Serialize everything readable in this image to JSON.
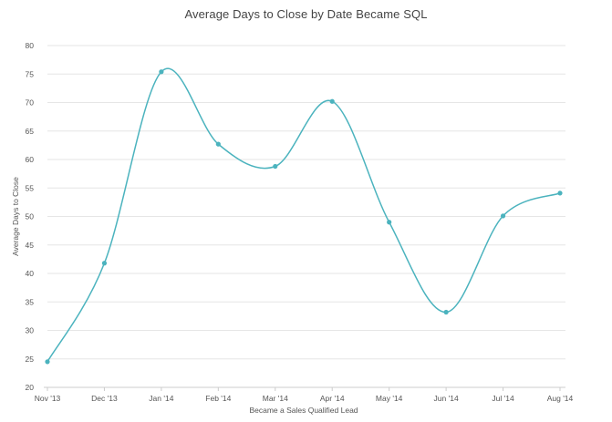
{
  "chart_data": {
    "type": "line",
    "title": "Average Days to Close by Date Became SQL",
    "xlabel": "Became a Sales Qualified Lead",
    "ylabel": "Average Days to Close",
    "categories": [
      "Nov '13",
      "Dec '13",
      "Jan '14",
      "Feb '14",
      "Mar '14",
      "Apr '14",
      "May '14",
      "Jun '14",
      "Jul '14",
      "Aug '14"
    ],
    "series": [
      {
        "values": [
          24.5,
          41.8,
          75.4,
          62.7,
          58.8,
          70.2,
          49.0,
          33.2,
          50.1,
          54.1
        ],
        "color": "#4bb3be"
      }
    ],
    "ylim": [
      20,
      80
    ],
    "yticks": [
      20,
      25,
      30,
      35,
      40,
      45,
      50,
      55,
      60,
      65,
      70,
      75,
      80
    ],
    "grid": true,
    "gridColor": "#e6e6e6",
    "axisColor": "#cccccc"
  }
}
